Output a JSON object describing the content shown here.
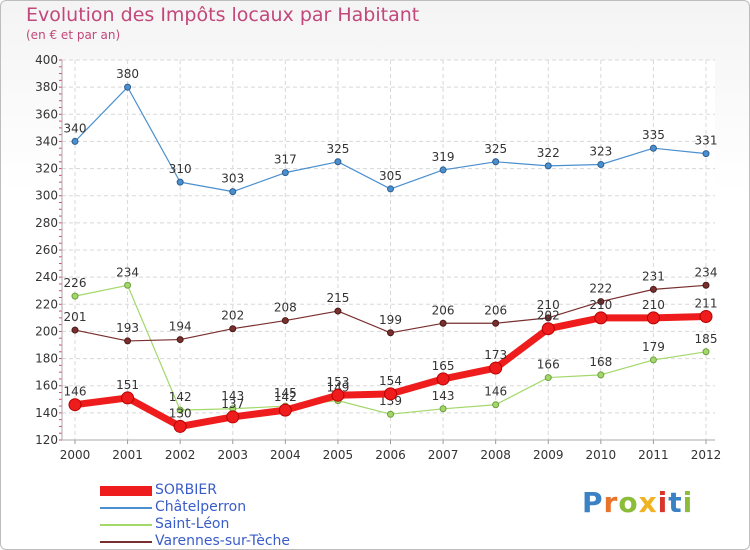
{
  "header": {
    "title": "Evolution des Impôts locaux par Habitant",
    "subtitle": "(en € et par an)"
  },
  "brand": {
    "text": "Proxiti",
    "letter_colors": [
      "#3b82c4",
      "#e8732a",
      "#8dbb3a",
      "#f0b323",
      "#d9352b",
      "#3b82c4",
      "#8dbb3a"
    ]
  },
  "chart_data": {
    "type": "line",
    "x": [
      "2000",
      "2001",
      "2002",
      "2003",
      "2004",
      "2005",
      "2006",
      "2007",
      "2008",
      "2009",
      "2010",
      "2011",
      "2012"
    ],
    "ylim": [
      120,
      400
    ],
    "yticks": [
      120,
      140,
      160,
      180,
      200,
      220,
      240,
      260,
      280,
      300,
      320,
      340,
      360,
      380,
      400
    ],
    "grid": true,
    "legend_position": "bottom-left",
    "series": [
      {
        "name": "Châtelperron",
        "color": "#4a8fcf",
        "values": [
          340,
          380,
          310,
          303,
          317,
          325,
          305,
          319,
          325,
          322,
          323,
          335,
          331
        ]
      },
      {
        "name": "Saint-Léon",
        "color": "#a2d86a",
        "values": [
          226,
          234,
          142,
          143,
          145,
          149,
          139,
          143,
          146,
          166,
          168,
          179,
          185
        ]
      },
      {
        "name": "Varennes-sur-Tèche",
        "color": "#7a2f2f",
        "values": [
          201,
          193,
          194,
          202,
          208,
          215,
          199,
          206,
          206,
          210,
          222,
          231,
          234
        ]
      },
      {
        "name": "SORBIER",
        "color": "#ee1c1c",
        "values": [
          146,
          151,
          130,
          137,
          142,
          153,
          154,
          165,
          173,
          202,
          210,
          210,
          211
        ]
      }
    ],
    "data_labels": [
      [
        "340",
        "380",
        "310",
        "303",
        "317",
        "325",
        "305",
        "319",
        "325",
        "322",
        "323",
        "335",
        "331"
      ],
      [
        "226",
        "234",
        "142",
        "143",
        "145",
        "149",
        "139",
        "143",
        "146",
        "166",
        "168",
        "179",
        "185"
      ],
      [
        "201",
        "193",
        "194",
        "202",
        "208",
        "215",
        "199",
        "206",
        "206",
        "210",
        "222",
        "231",
        "234"
      ],
      [
        "146",
        "151",
        "130",
        "137",
        "142",
        "153",
        "154",
        "165",
        "173",
        "202",
        "210",
        "210",
        "211"
      ]
    ]
  },
  "legend": [
    {
      "label": "SORBIER",
      "color": "#ee1c1c",
      "thick": true
    },
    {
      "label": "Châtelperron",
      "color": "#4a8fcf",
      "thick": false
    },
    {
      "label": "Saint-Léon",
      "color": "#a2d86a",
      "thick": false
    },
    {
      "label": "Varennes-sur-Tèche",
      "color": "#7a2f2f",
      "thick": false
    }
  ]
}
